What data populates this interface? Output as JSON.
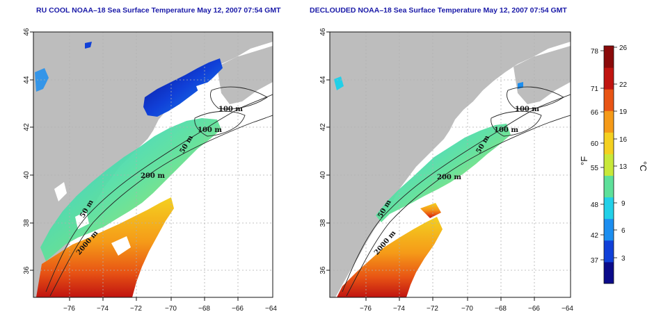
{
  "left_panel": {
    "title": "RU COOL NOAA–18 Sea Surface Temperature May 12, 2007 07:54 GMT",
    "contour_labels": [
      "100 m",
      "100 m",
      "50 m",
      "200 m",
      "50 m",
      "2000 m"
    ]
  },
  "right_panel": {
    "title": "DECLOUDED NOAA–18 Sea Surface Temperature May 12, 2007 07:54 GMT",
    "contour_labels": [
      "100 m",
      "100 m",
      "50 m",
      "200 m",
      "50 m",
      "2000 m"
    ]
  },
  "axes": {
    "x_ticks": [
      "−76",
      "−74",
      "−72",
      "−70",
      "−68",
      "−66",
      "−64"
    ],
    "y_ticks": [
      "46",
      "44",
      "42",
      "40",
      "38",
      "36"
    ]
  },
  "colorbar": {
    "fahrenheit_unit": "°F",
    "celsius_unit": "°C",
    "fahrenheit_ticks": [
      "78",
      "71",
      "66",
      "60",
      "55",
      "48",
      "42",
      "37"
    ],
    "celsius_ticks": [
      "26",
      "22",
      "19",
      "16",
      "13",
      "9",
      "6",
      "3"
    ],
    "colors": [
      "#0b0b8a",
      "#1040d8",
      "#1c8ef0",
      "#22d0e8",
      "#5ee09a",
      "#c8e83a",
      "#f4d020",
      "#f59a18",
      "#e85414",
      "#c01410",
      "#8a0a0a"
    ]
  },
  "map_colors": {
    "land": "#bdbdbd",
    "water": "#ffffff",
    "grid": "#b0b0b0"
  }
}
